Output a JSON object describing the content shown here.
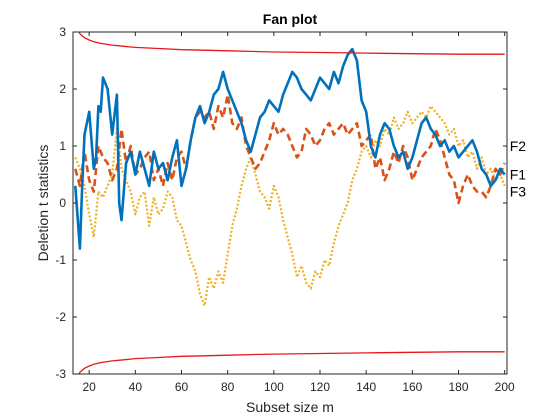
{
  "chart_data": {
    "type": "line",
    "title": "Fan plot",
    "xlabel": "Subset size m",
    "ylabel": "Deletion t statistics",
    "xlim": [
      13,
      201
    ],
    "ylim": [
      -3,
      3
    ],
    "xticks": [
      20,
      40,
      60,
      80,
      100,
      120,
      140,
      160,
      180,
      200
    ],
    "yticks": [
      -3,
      -2,
      -1,
      0,
      1,
      2,
      3
    ],
    "grid": false,
    "legend": "none",
    "colors": {
      "F1": "#D95319",
      "F2": "#0072BD",
      "F3": "#EDB120",
      "envelope": "#E8171B",
      "axis": "#262626"
    },
    "series": [
      {
        "name": "F1",
        "style": "dashed",
        "x": [
          14,
          16,
          18,
          20,
          22,
          24,
          26,
          28,
          30,
          32,
          34,
          36,
          38,
          40,
          42,
          44,
          46,
          48,
          50,
          52,
          54,
          56,
          58,
          60,
          62,
          64,
          66,
          68,
          70,
          72,
          74,
          76,
          78,
          80,
          82,
          84,
          86,
          88,
          90,
          92,
          94,
          96,
          98,
          100,
          102,
          104,
          106,
          108,
          110,
          112,
          114,
          116,
          118,
          120,
          122,
          124,
          126,
          128,
          130,
          132,
          134,
          136,
          138,
          140,
          142,
          144,
          146,
          148,
          150,
          152,
          154,
          156,
          158,
          160,
          162,
          164,
          166,
          168,
          170,
          172,
          174,
          176,
          178,
          180,
          182,
          184,
          186,
          188,
          190,
          192,
          194,
          196,
          198,
          200
        ],
        "y": [
          0.6,
          0.3,
          0.9,
          0.4,
          0.2,
          1.0,
          0.8,
          0.7,
          0.4,
          0.6,
          1.3,
          0.7,
          1.0,
          0.5,
          0.6,
          0.8,
          0.9,
          0.4,
          0.6,
          0.3,
          0.7,
          0.4,
          0.8,
          0.9,
          0.6,
          1.1,
          1.5,
          1.6,
          1.5,
          1.6,
          1.3,
          1.7,
          1.5,
          1.9,
          1.4,
          1.3,
          1.5,
          1.0,
          0.8,
          0.6,
          0.7,
          0.9,
          1.1,
          1.4,
          1.2,
          1.3,
          1.2,
          1.0,
          0.8,
          0.9,
          1.3,
          1.2,
          1.0,
          1.1,
          1.3,
          1.4,
          1.2,
          1.3,
          1.4,
          1.2,
          1.3,
          1.4,
          1.0,
          1.1,
          1.2,
          0.6,
          0.8,
          0.4,
          0.6,
          0.9,
          0.7,
          1.0,
          0.8,
          0.4,
          0.6,
          0.8,
          0.9,
          1.0,
          1.3,
          1.1,
          0.8,
          0.5,
          0.4,
          0.0,
          0.3,
          0.5,
          0.3,
          0.2,
          0.2,
          0.1,
          0.3,
          0.6,
          0.5,
          0.7
        ]
      },
      {
        "name": "F2",
        "style": "solid",
        "x": [
          14,
          16,
          17,
          18,
          20,
          22,
          23,
          24,
          25,
          26,
          28,
          30,
          32,
          33,
          34,
          36,
          38,
          40,
          42,
          44,
          46,
          48,
          50,
          52,
          54,
          56,
          58,
          60,
          62,
          64,
          66,
          68,
          70,
          72,
          74,
          76,
          78,
          80,
          82,
          84,
          86,
          88,
          90,
          92,
          94,
          96,
          98,
          100,
          102,
          104,
          106,
          108,
          110,
          112,
          114,
          116,
          118,
          120,
          122,
          124,
          126,
          128,
          130,
          132,
          134,
          136,
          138,
          140,
          142,
          144,
          146,
          148,
          150,
          152,
          154,
          156,
          158,
          160,
          162,
          164,
          166,
          168,
          170,
          172,
          174,
          176,
          178,
          180,
          182,
          184,
          186,
          188,
          190,
          192,
          194,
          196,
          198,
          200
        ],
        "y": [
          0.3,
          -0.8,
          0.3,
          1.2,
          1.6,
          0.6,
          0.8,
          1.7,
          1.6,
          2.2,
          2.0,
          1.2,
          1.9,
          0.0,
          -0.3,
          0.7,
          0.9,
          0.5,
          0.9,
          0.6,
          0.3,
          0.9,
          0.6,
          0.7,
          0.4,
          0.8,
          1.1,
          0.3,
          0.6,
          1.1,
          1.5,
          1.7,
          1.4,
          1.6,
          1.9,
          2.0,
          2.3,
          2.0,
          1.8,
          1.6,
          1.4,
          1.1,
          0.9,
          1.2,
          1.5,
          1.6,
          1.8,
          1.7,
          1.6,
          1.9,
          2.1,
          2.3,
          2.2,
          2.0,
          1.9,
          1.8,
          2.0,
          2.2,
          2.1,
          2.0,
          2.3,
          2.1,
          2.4,
          2.6,
          2.7,
          2.5,
          1.8,
          1.6,
          1.0,
          0.8,
          1.2,
          1.4,
          1.3,
          1.0,
          0.8,
          0.9,
          0.6,
          0.8,
          1.1,
          1.4,
          1.5,
          1.3,
          1.2,
          1.0,
          1.1,
          0.9,
          1.0,
          0.8,
          0.9,
          1.0,
          1.1,
          0.9,
          0.6,
          0.5,
          0.3,
          0.4,
          0.6,
          0.5
        ]
      },
      {
        "name": "F3",
        "style": "dotted",
        "x": [
          14,
          16,
          18,
          20,
          22,
          24,
          26,
          28,
          30,
          32,
          34,
          36,
          38,
          40,
          42,
          44,
          46,
          48,
          50,
          52,
          54,
          56,
          58,
          60,
          62,
          64,
          66,
          68,
          70,
          72,
          74,
          76,
          78,
          80,
          82,
          84,
          86,
          88,
          90,
          92,
          94,
          96,
          98,
          100,
          102,
          104,
          106,
          108,
          110,
          112,
          114,
          116,
          118,
          120,
          122,
          124,
          126,
          128,
          130,
          132,
          134,
          136,
          138,
          140,
          142,
          144,
          146,
          148,
          150,
          152,
          154,
          156,
          158,
          160,
          162,
          164,
          166,
          168,
          170,
          172,
          174,
          176,
          178,
          180,
          182,
          184,
          186,
          188,
          190,
          192,
          194,
          196,
          198,
          200
        ],
        "y": [
          0.8,
          0.6,
          0.3,
          -0.2,
          -0.6,
          0.2,
          0.1,
          0.3,
          0.5,
          1.3,
          0.6,
          0.4,
          0.2,
          -0.2,
          0.1,
          0.2,
          -0.4,
          0.1,
          -0.2,
          -0.1,
          0.2,
          0.1,
          -0.3,
          -0.4,
          -0.7,
          -1.0,
          -1.2,
          -1.6,
          -1.8,
          -1.3,
          -1.5,
          -1.2,
          -1.4,
          -0.9,
          -0.4,
          -0.1,
          0.3,
          0.6,
          0.8,
          0.5,
          0.2,
          0.1,
          -0.1,
          0.3,
          0.1,
          -0.3,
          -0.6,
          -0.9,
          -1.3,
          -1.1,
          -1.4,
          -1.5,
          -1.2,
          -1.3,
          -1.0,
          -1.1,
          -0.7,
          -0.4,
          -0.2,
          0.0,
          0.4,
          0.6,
          0.9,
          1.0,
          0.8,
          1.1,
          1.0,
          1.3,
          1.2,
          1.5,
          1.3,
          1.4,
          1.6,
          1.4,
          1.5,
          1.6,
          1.5,
          1.7,
          1.6,
          1.5,
          1.4,
          1.2,
          1.3,
          1.0,
          1.1,
          0.8,
          0.9,
          0.6,
          0.8,
          0.5,
          0.6,
          0.4,
          0.5,
          0.3
        ]
      },
      {
        "name": "upper envelope",
        "style": "solid",
        "x": [
          14,
          15,
          16,
          18,
          20,
          22,
          25,
          30,
          35,
          40,
          50,
          60,
          70,
          80,
          90,
          100,
          120,
          140,
          160,
          180,
          200
        ],
        "y": [
          3.2,
          3.05,
          2.97,
          2.9,
          2.86,
          2.83,
          2.8,
          2.77,
          2.75,
          2.73,
          2.71,
          2.69,
          2.68,
          2.67,
          2.66,
          2.65,
          2.64,
          2.63,
          2.62,
          2.61,
          2.61
        ]
      },
      {
        "name": "lower envelope",
        "style": "solid",
        "x": [
          14,
          15,
          16,
          18,
          20,
          22,
          25,
          30,
          35,
          40,
          50,
          60,
          70,
          80,
          90,
          100,
          120,
          140,
          160,
          180,
          200
        ],
        "y": [
          -3.2,
          -3.05,
          -2.97,
          -2.9,
          -2.86,
          -2.83,
          -2.8,
          -2.77,
          -2.75,
          -2.73,
          -2.71,
          -2.69,
          -2.68,
          -2.67,
          -2.66,
          -2.65,
          -2.64,
          -2.63,
          -2.62,
          -2.61,
          -2.61
        ]
      }
    ],
    "annotations": [
      {
        "text": "F2",
        "x": 200,
        "y": 1.0
      },
      {
        "text": "F1",
        "x": 200,
        "y": 0.5
      },
      {
        "text": "F3",
        "x": 200,
        "y": 0.2
      }
    ]
  }
}
